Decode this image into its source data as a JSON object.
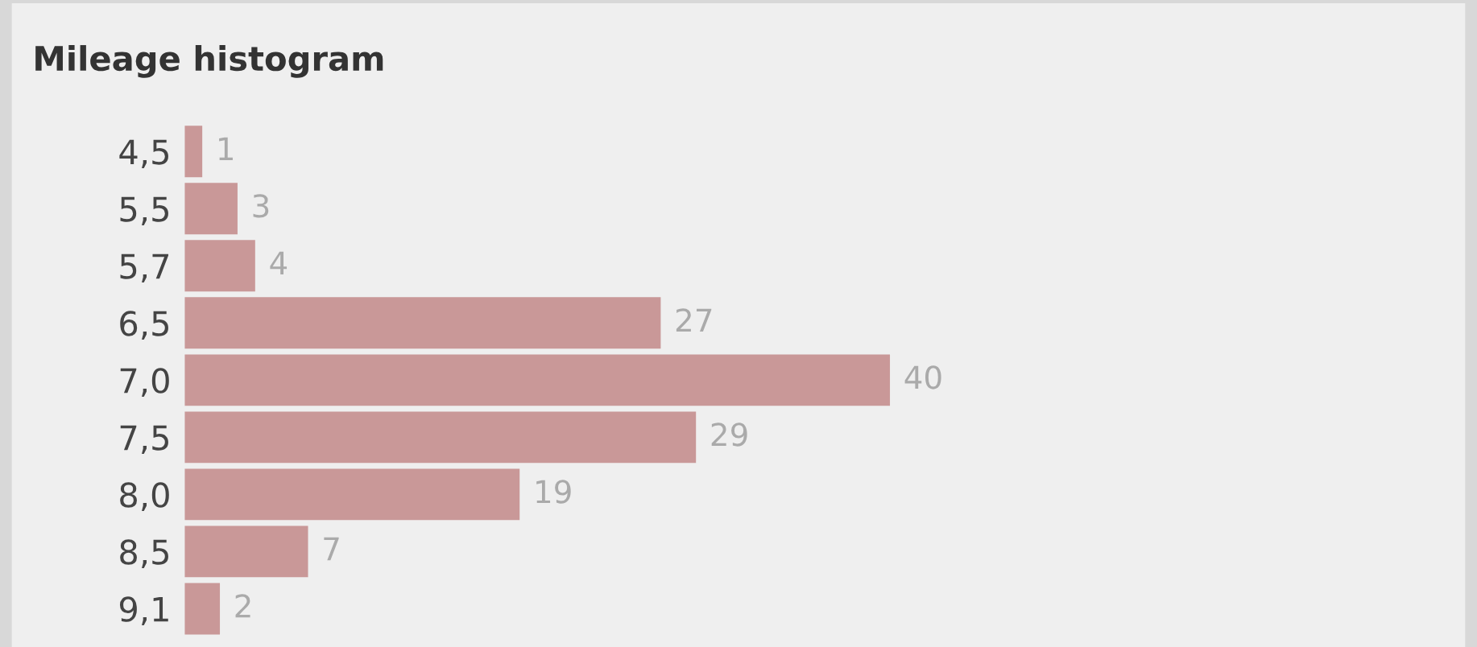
{
  "chart_data": {
    "type": "bar",
    "orientation": "horizontal",
    "title": "Mileage histogram",
    "categories": [
      "4,5",
      "5,5",
      "5,7",
      "6,5",
      "7,0",
      "7,5",
      "8,0",
      "8,5",
      "9,1"
    ],
    "values": [
      1,
      3,
      4,
      27,
      40,
      29,
      19,
      7,
      2
    ],
    "color": "#c99898",
    "data_labels": true
  }
}
